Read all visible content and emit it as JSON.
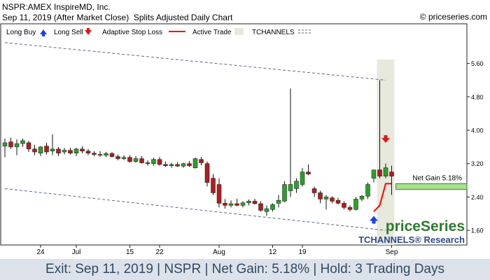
{
  "header": {
    "title": "NSPR:AMEX InspireMD, Inc.",
    "date_line": "Sep 11, 2019 (After Market Close)",
    "chart_kind": "Splits Adjusted Daily Chart",
    "copyright": "© priceseries.com"
  },
  "legend": {
    "long_buy": "Long Buy",
    "long_sell": "Long Sell",
    "adaptive_stop": "Adaptive Stop Loss",
    "active_trade": "Active Trade",
    "tchannels": "TCHANNELS"
  },
  "branding": {
    "logo": "priceSeries",
    "research": "TCHANNELS® Research"
  },
  "annotation": {
    "net_gain": "Net Gain 5.18%"
  },
  "footer": {
    "text": "Exit: Sep 11, 2019 | NSPR | Net Gain: 5.18% | Hold: 3 Trading Days"
  },
  "colors": {
    "up": "#2ca02c",
    "down": "#b01e1e",
    "stop": "#ff0000",
    "buy_arrow": "#1a3ef0",
    "sell_arrow": "#e01818",
    "active_band": "#e6e9dc",
    "channel": "#5a6a85",
    "gain_box": "#a9e08a",
    "gain_box_border": "#2c8a2c",
    "logo": "#2e7a2e",
    "research": "#2e4a8a"
  },
  "chart_data": {
    "type": "candlestick",
    "y_ticks": [
      "5.60",
      "4.80",
      "4.00",
      "3.20",
      "2.40",
      "1.60"
    ],
    "ylim": [
      1.25,
      6.55
    ],
    "x_ticks": [
      {
        "label": "24",
        "index": 6
      },
      {
        "label": "Jul",
        "index": 12
      },
      {
        "label": "15",
        "index": 21
      },
      {
        "label": "22",
        "index": 26
      },
      {
        "label": "Aug",
        "index": 36
      },
      {
        "label": "12",
        "index": 45
      },
      {
        "label": "19",
        "index": 50
      },
      {
        "label": "Sep",
        "index": 65
      }
    ],
    "candles": [
      {
        "o": 3.62,
        "h": 3.8,
        "l": 3.35,
        "c": 3.7
      },
      {
        "o": 3.72,
        "h": 3.82,
        "l": 3.55,
        "c": 3.6
      },
      {
        "o": 3.6,
        "h": 3.78,
        "l": 3.4,
        "c": 3.68
      },
      {
        "o": 3.68,
        "h": 3.8,
        "l": 3.6,
        "c": 3.75
      },
      {
        "o": 3.7,
        "h": 3.75,
        "l": 3.48,
        "c": 3.55
      },
      {
        "o": 3.55,
        "h": 3.65,
        "l": 3.4,
        "c": 3.48
      },
      {
        "o": 3.45,
        "h": 3.62,
        "l": 3.38,
        "c": 3.6
      },
      {
        "o": 3.62,
        "h": 3.7,
        "l": 3.42,
        "c": 3.48
      },
      {
        "o": 3.5,
        "h": 3.9,
        "l": 3.4,
        "c": 3.55
      },
      {
        "o": 3.55,
        "h": 3.6,
        "l": 3.38,
        "c": 3.45
      },
      {
        "o": 3.48,
        "h": 3.58,
        "l": 3.42,
        "c": 3.52
      },
      {
        "o": 3.52,
        "h": 3.58,
        "l": 3.42,
        "c": 3.45
      },
      {
        "o": 3.45,
        "h": 3.58,
        "l": 3.38,
        "c": 3.55
      },
      {
        "o": 3.55,
        "h": 3.62,
        "l": 3.45,
        "c": 3.5
      },
      {
        "o": 3.5,
        "h": 3.55,
        "l": 3.4,
        "c": 3.45
      },
      {
        "o": 3.45,
        "h": 3.5,
        "l": 3.38,
        "c": 3.42
      },
      {
        "o": 3.42,
        "h": 3.5,
        "l": 3.36,
        "c": 3.4
      },
      {
        "o": 3.4,
        "h": 3.48,
        "l": 3.36,
        "c": 3.44
      },
      {
        "o": 3.44,
        "h": 3.48,
        "l": 3.34,
        "c": 3.37
      },
      {
        "o": 3.37,
        "h": 3.42,
        "l": 3.28,
        "c": 3.32
      },
      {
        "o": 3.32,
        "h": 3.4,
        "l": 3.28,
        "c": 3.35
      },
      {
        "o": 3.35,
        "h": 3.4,
        "l": 3.22,
        "c": 3.25
      },
      {
        "o": 3.25,
        "h": 3.38,
        "l": 3.22,
        "c": 3.32
      },
      {
        "o": 3.32,
        "h": 3.38,
        "l": 3.2,
        "c": 3.22
      },
      {
        "o": 3.22,
        "h": 3.28,
        "l": 3.15,
        "c": 3.2
      },
      {
        "o": 3.2,
        "h": 3.34,
        "l": 3.15,
        "c": 3.3
      },
      {
        "o": 3.3,
        "h": 3.36,
        "l": 3.15,
        "c": 3.18
      },
      {
        "o": 3.18,
        "h": 3.25,
        "l": 3.12,
        "c": 3.15
      },
      {
        "o": 3.15,
        "h": 3.22,
        "l": 3.1,
        "c": 3.18
      },
      {
        "o": 3.18,
        "h": 3.24,
        "l": 3.12,
        "c": 3.14
      },
      {
        "o": 3.14,
        "h": 3.22,
        "l": 3.1,
        "c": 3.2
      },
      {
        "o": 3.2,
        "h": 3.26,
        "l": 3.12,
        "c": 3.15
      },
      {
        "o": 3.1,
        "h": 3.34,
        "l": 3.08,
        "c": 3.32
      },
      {
        "o": 3.3,
        "h": 3.36,
        "l": 3.16,
        "c": 3.22
      },
      {
        "o": 3.2,
        "h": 3.25,
        "l": 2.65,
        "c": 2.75
      },
      {
        "o": 2.85,
        "h": 2.95,
        "l": 2.45,
        "c": 2.5
      },
      {
        "o": 2.7,
        "h": 2.85,
        "l": 2.15,
        "c": 2.25
      },
      {
        "o": 2.25,
        "h": 2.35,
        "l": 2.12,
        "c": 2.2
      },
      {
        "o": 2.2,
        "h": 2.32,
        "l": 2.15,
        "c": 2.24
      },
      {
        "o": 2.24,
        "h": 2.36,
        "l": 2.18,
        "c": 2.2
      },
      {
        "o": 2.2,
        "h": 2.3,
        "l": 2.15,
        "c": 2.26
      },
      {
        "o": 2.26,
        "h": 2.34,
        "l": 2.2,
        "c": 2.3
      },
      {
        "o": 2.3,
        "h": 2.36,
        "l": 2.22,
        "c": 2.24
      },
      {
        "o": 2.24,
        "h": 2.3,
        "l": 2.05,
        "c": 2.08
      },
      {
        "o": 2.05,
        "h": 2.2,
        "l": 1.95,
        "c": 2.12
      },
      {
        "o": 2.1,
        "h": 2.25,
        "l": 2.05,
        "c": 2.22
      },
      {
        "o": 2.25,
        "h": 2.45,
        "l": 2.15,
        "c": 2.32
      },
      {
        "o": 2.3,
        "h": 2.78,
        "l": 2.28,
        "c": 2.7
      },
      {
        "o": 2.55,
        "h": 5.0,
        "l": 2.4,
        "c": 2.7
      },
      {
        "o": 2.6,
        "h": 2.85,
        "l": 2.5,
        "c": 2.78
      },
      {
        "o": 2.7,
        "h": 3.1,
        "l": 2.65,
        "c": 3.0
      },
      {
        "o": 3.0,
        "h": 3.18,
        "l": 2.92,
        "c": 2.95
      },
      {
        "o": 2.6,
        "h": 2.65,
        "l": 2.4,
        "c": 2.5
      },
      {
        "o": 2.5,
        "h": 2.55,
        "l": 2.25,
        "c": 2.35
      },
      {
        "o": 2.35,
        "h": 2.45,
        "l": 2.1,
        "c": 2.4
      },
      {
        "o": 2.38,
        "h": 2.42,
        "l": 2.25,
        "c": 2.3
      },
      {
        "o": 2.32,
        "h": 2.38,
        "l": 2.22,
        "c": 2.25
      },
      {
        "o": 2.25,
        "h": 2.3,
        "l": 2.1,
        "c": 2.15
      },
      {
        "o": 2.15,
        "h": 2.2,
        "l": 2.05,
        "c": 2.1
      },
      {
        "o": 2.1,
        "h": 2.4,
        "l": 2.08,
        "c": 2.35
      },
      {
        "o": 2.35,
        "h": 2.45,
        "l": 2.3,
        "c": 2.42
      },
      {
        "o": 2.42,
        "h": 2.75,
        "l": 2.35,
        "c": 2.7
      },
      {
        "o": 2.85,
        "h": 3.05,
        "l": 2.75,
        "c": 3.05
      },
      {
        "o": 3.05,
        "h": 5.2,
        "l": 2.85,
        "c": 2.9
      },
      {
        "o": 2.9,
        "h": 3.2,
        "l": 2.85,
        "c": 3.1
      },
      {
        "o": 3.0,
        "h": 3.15,
        "l": 2.45,
        "c": 2.9
      }
    ],
    "active_trade": {
      "start_index": 63,
      "end_index": 65
    },
    "long_buy": {
      "index": 62,
      "price": 1.88
    },
    "long_sell": {
      "index": 64,
      "price": 3.78
    },
    "stop_line": [
      [
        62,
        2.05
      ],
      [
        63,
        2.2
      ],
      [
        64,
        2.72
      ],
      [
        65,
        2.72
      ]
    ],
    "tchannels": {
      "upper": [
        [
          0,
          6.1
        ],
        [
          64,
          5.2
        ]
      ],
      "lower": [
        [
          0,
          2.6
        ],
        [
          64,
          1.6
        ]
      ]
    },
    "net_gain_box": {
      "top": 2.72,
      "bottom": 2.58
    }
  }
}
